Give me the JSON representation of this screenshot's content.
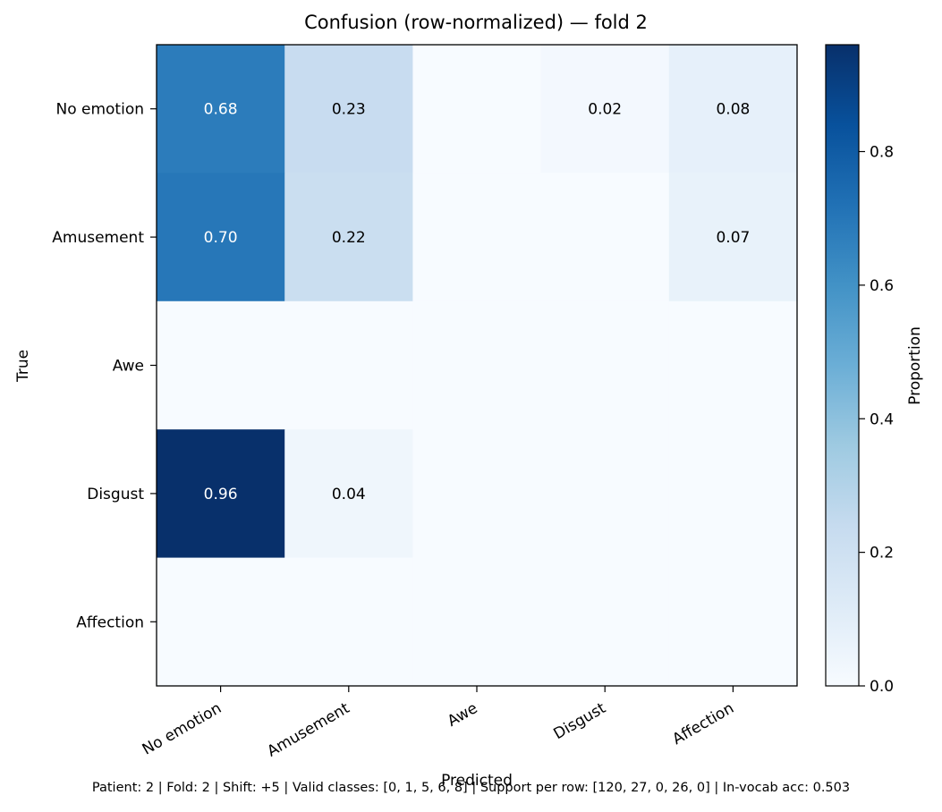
{
  "chart_data": {
    "type": "heatmap",
    "title": "Confusion (row-normalized) — fold 2",
    "xlabel": "Predicted",
    "ylabel": "True",
    "x_categories": [
      "No emotion",
      "Amusement",
      "Awe",
      "Disgust",
      "Affection"
    ],
    "y_categories": [
      "No emotion",
      "Amusement",
      "Awe",
      "Disgust",
      "Affection"
    ],
    "values": [
      [
        0.68,
        0.23,
        0.0,
        0.02,
        0.08
      ],
      [
        0.7,
        0.22,
        0.0,
        0.0,
        0.07
      ],
      [
        0.0,
        0.0,
        0.0,
        0.0,
        0.0
      ],
      [
        0.96,
        0.04,
        0.0,
        0.0,
        0.0
      ],
      [
        0.0,
        0.0,
        0.0,
        0.0,
        0.0
      ]
    ],
    "cell_labels": [
      [
        "0.68",
        "0.23",
        "",
        "0.02",
        "0.08"
      ],
      [
        "0.70",
        "0.22",
        "",
        "",
        "0.07"
      ],
      [
        "",
        "",
        "",
        "",
        ""
      ],
      [
        "0.96",
        "0.04",
        "",
        "",
        ""
      ],
      [
        "",
        "",
        "",
        "",
        ""
      ]
    ],
    "colormap": "Blues",
    "vmin": 0,
    "vmax": 0.96,
    "colorbar": {
      "label": "Proportion",
      "ticks": [
        0.0,
        0.2,
        0.4,
        0.6,
        0.8
      ],
      "tick_labels": [
        "0.0",
        "0.2",
        "0.4",
        "0.6",
        "0.8"
      ]
    }
  },
  "footer": "Patient: 2 | Fold: 2 | Shift: +5 | Valid classes: [0, 1, 5, 6, 8] | Support per row: [120, 27, 0, 26, 0] | In-vocab acc: 0.503"
}
